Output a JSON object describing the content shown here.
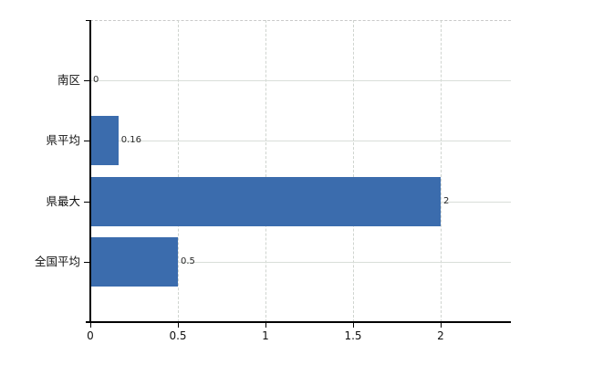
{
  "chart_data": {
    "type": "bar",
    "orientation": "horizontal",
    "title": "",
    "xlabel": "",
    "ylabel": "",
    "categories": [
      "南区",
      "県平均",
      "県最大",
      "全国平均"
    ],
    "values": [
      0,
      0.16,
      2,
      0.5
    ],
    "value_labels": [
      "0",
      "0.16",
      "2",
      "0.5"
    ],
    "x_ticks": [
      {
        "value": 0,
        "label": "0"
      },
      {
        "value": 0.5,
        "label": "0.5"
      },
      {
        "value": 1,
        "label": "1"
      },
      {
        "value": 1.5,
        "label": "1.5"
      },
      {
        "value": 2,
        "label": "2"
      }
    ],
    "xlim": [
      0,
      2.4
    ],
    "grid": true,
    "legend": false,
    "bar_color": "#3b6cad",
    "gridline_color": "#d9ded9",
    "axis_color": "#000000",
    "text_color": "#111111"
  }
}
